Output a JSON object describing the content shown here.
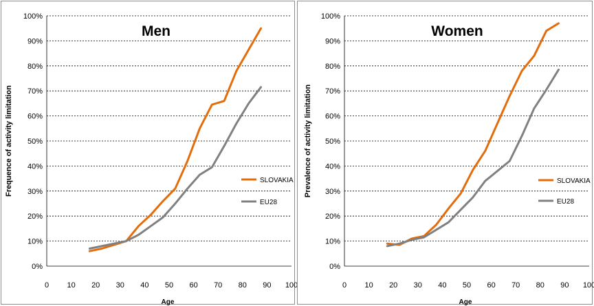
{
  "colors": {
    "slovakia": "#E46C0A",
    "eu28": "#808080"
  },
  "chart_data": [
    {
      "type": "line",
      "title": "Men",
      "xlabel": "Age",
      "ylabel": "Frequence of activity limitation",
      "xlim": [
        0,
        100
      ],
      "ylim": [
        0,
        100
      ],
      "x_ticks": [
        "0",
        "10",
        "20",
        "30",
        "40",
        "50",
        "60",
        "70",
        "80",
        "90",
        "100"
      ],
      "y_ticks": [
        "0%",
        "10%",
        "20%",
        "30%",
        "40%",
        "50%",
        "60%",
        "70%",
        "80%",
        "90%",
        "100%"
      ],
      "grid": true,
      "legend_position": "right",
      "series": [
        {
          "name": "SLOVAKIA",
          "color": "#E46C0A",
          "x": [
            17.5,
            22.5,
            27.5,
            32.5,
            37.5,
            42.5,
            47.5,
            52.5,
            57.5,
            62.5,
            67.5,
            72.5,
            77.5,
            82.5,
            87.5
          ],
          "y": [
            6,
            7,
            8.5,
            10,
            16,
            20.5,
            26,
            31,
            42,
            55,
            64.5,
            66,
            78,
            86.5,
            95
          ]
        },
        {
          "name": "EU28",
          "color": "#808080",
          "x": [
            17.5,
            22.5,
            27.5,
            32.5,
            37.5,
            42.5,
            47.5,
            52.5,
            57.5,
            62.5,
            67.5,
            72.5,
            77.5,
            82.5,
            87.5
          ],
          "y": [
            7,
            8,
            9,
            10,
            12.5,
            16,
            19.5,
            25,
            31,
            36.5,
            39.5,
            48,
            57,
            65,
            71.5
          ]
        }
      ]
    },
    {
      "type": "line",
      "title": "Women",
      "xlabel": "Age",
      "ylabel": "Prevalence of activity limitation",
      "xlim": [
        0,
        100
      ],
      "ylim": [
        0,
        100
      ],
      "x_ticks": [
        "0",
        "10",
        "20",
        "30",
        "40",
        "50",
        "60",
        "70",
        "80",
        "90",
        "100"
      ],
      "y_ticks": [
        "0%",
        "10%",
        "20%",
        "30%",
        "40%",
        "50%",
        "60%",
        "70%",
        "80%",
        "90%",
        "100%"
      ],
      "grid": true,
      "legend_position": "right",
      "series": [
        {
          "name": "SLOVAKIA",
          "color": "#E46C0A",
          "x": [
            17.5,
            22.5,
            27.5,
            32.5,
            37.5,
            42.5,
            47.5,
            52.5,
            57.5,
            62.5,
            67.5,
            72.5,
            77.5,
            82.5,
            87.5
          ],
          "y": [
            9,
            8.5,
            11,
            12,
            16.5,
            23,
            29,
            38.5,
            46,
            57,
            68,
            78,
            84,
            94,
            97
          ]
        },
        {
          "name": "EU28",
          "color": "#808080",
          "x": [
            17.5,
            22.5,
            27.5,
            32.5,
            37.5,
            42.5,
            47.5,
            52.5,
            57.5,
            62.5,
            67.5,
            72.5,
            77.5,
            82.5,
            87.5
          ],
          "y": [
            8,
            9,
            10.5,
            11.5,
            14.5,
            17.5,
            22.5,
            27.5,
            34,
            38,
            42,
            52,
            63,
            70.5,
            78.5
          ]
        }
      ]
    }
  ]
}
